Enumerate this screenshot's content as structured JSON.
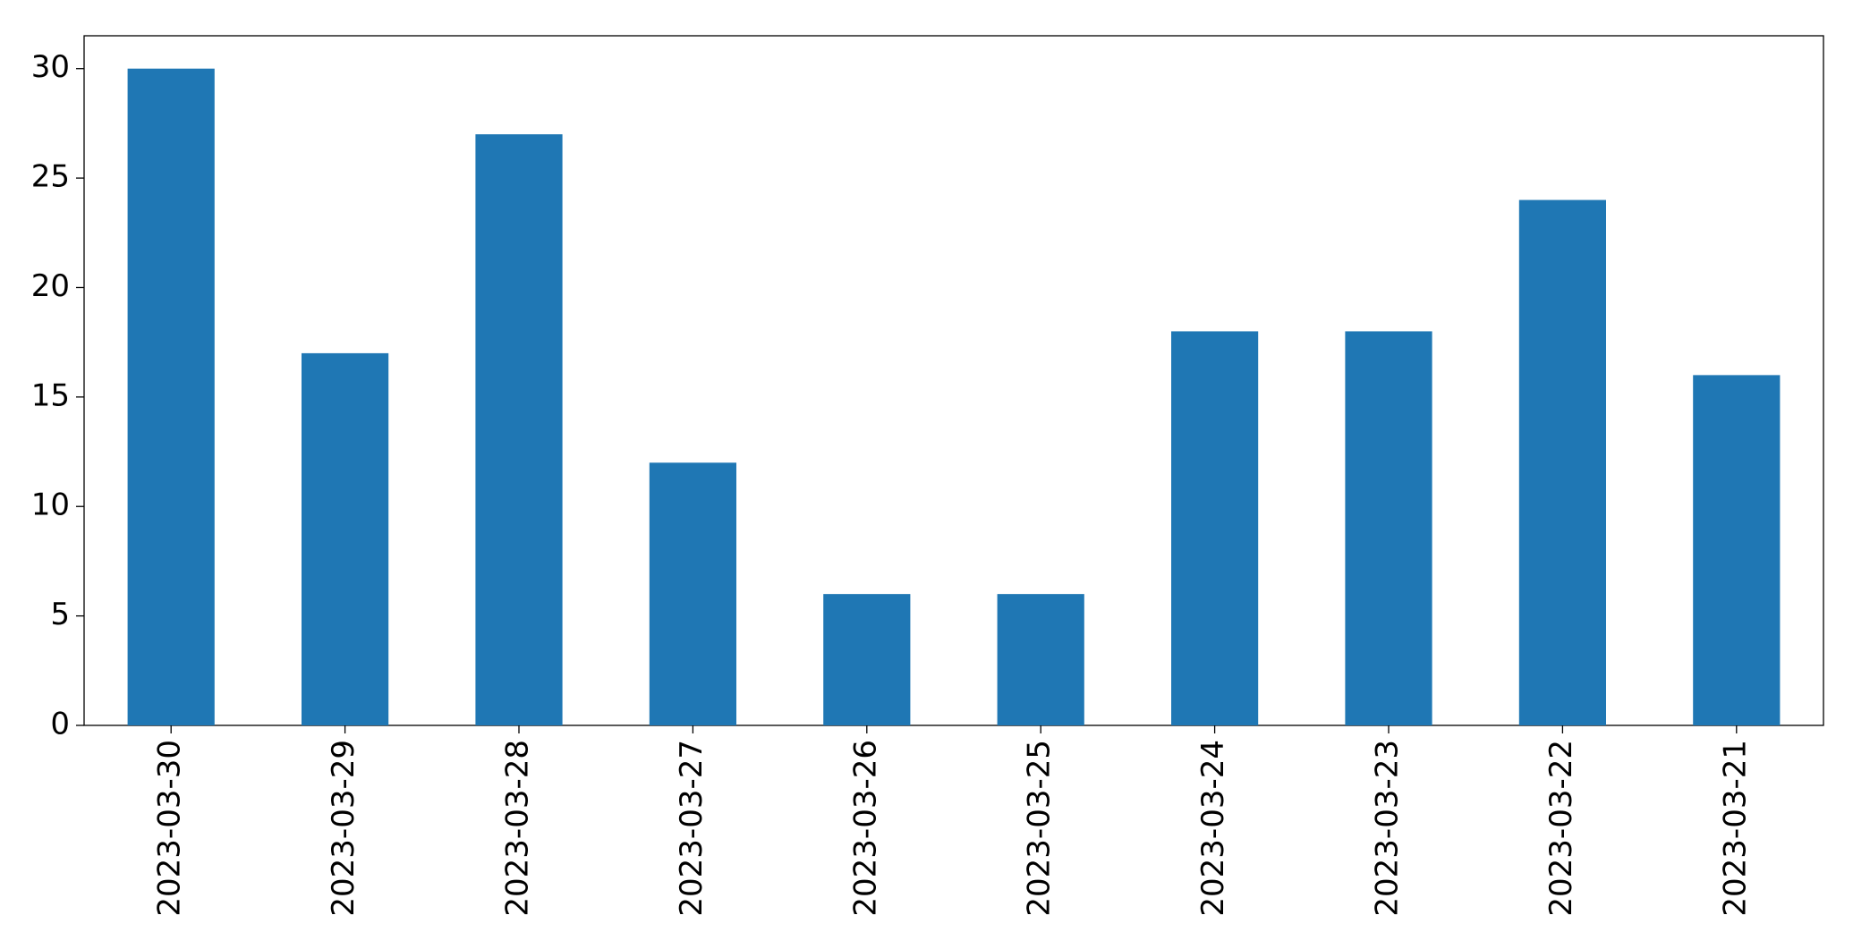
{
  "chart_data": {
    "type": "bar",
    "categories": [
      "2023-03-30",
      "2023-03-29",
      "2023-03-28",
      "2023-03-27",
      "2023-03-26",
      "2023-03-25",
      "2023-03-24",
      "2023-03-23",
      "2023-03-22",
      "2023-03-21"
    ],
    "values": [
      30,
      17,
      27,
      12,
      6,
      6,
      18,
      18,
      24,
      16
    ],
    "color": "#1f77b4",
    "ylim": [
      0,
      31.5
    ],
    "yticks": [
      0,
      5,
      10,
      15,
      20,
      25,
      30
    ],
    "grid": false
  }
}
